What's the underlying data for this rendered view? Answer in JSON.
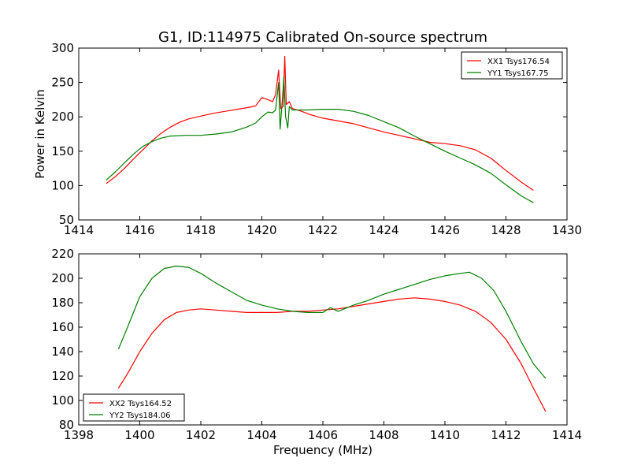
{
  "chart_data": [
    {
      "type": "line",
      "title": "G1, ID:114975 Calibrated On-source spectrum",
      "xlabel": "",
      "ylabel": "Power in Kelvin",
      "xlim": [
        1414,
        1430
      ],
      "ylim": [
        50,
        300
      ],
      "xticks": [
        1414,
        1416,
        1418,
        1420,
        1422,
        1424,
        1426,
        1428,
        1430
      ],
      "yticks": [
        50,
        100,
        150,
        200,
        250,
        300
      ],
      "legend_position": "top-right",
      "grid": false,
      "series": [
        {
          "name": "XX1 Tsys176.54",
          "color": "#ff0000",
          "points": [
            [
              1414.9,
              103
            ],
            [
              1415.2,
              113
            ],
            [
              1415.5,
              125
            ],
            [
              1415.8,
              139
            ],
            [
              1416.1,
              152
            ],
            [
              1416.4,
              165
            ],
            [
              1416.7,
              176
            ],
            [
              1417.0,
              185
            ],
            [
              1417.3,
              192
            ],
            [
              1417.6,
              197
            ],
            [
              1418.0,
              201
            ],
            [
              1418.4,
              205
            ],
            [
              1418.8,
              208
            ],
            [
              1419.2,
              211
            ],
            [
              1419.6,
              214
            ],
            [
              1419.8,
              216
            ],
            [
              1420.0,
              228
            ],
            [
              1420.2,
              225
            ],
            [
              1420.35,
              222
            ],
            [
              1420.45,
              232
            ],
            [
              1420.55,
              268
            ],
            [
              1420.62,
              212
            ],
            [
              1420.7,
              215
            ],
            [
              1420.75,
              288
            ],
            [
              1420.8,
              218
            ],
            [
              1420.9,
              222
            ],
            [
              1421.0,
              212
            ],
            [
              1421.3,
              208
            ],
            [
              1421.6,
              203
            ],
            [
              1422.0,
              198
            ],
            [
              1422.5,
              194
            ],
            [
              1423.0,
              190
            ],
            [
              1423.5,
              184
            ],
            [
              1424.0,
              178
            ],
            [
              1424.5,
              173
            ],
            [
              1425.0,
              168
            ],
            [
              1425.5,
              163
            ],
            [
              1426.0,
              161
            ],
            [
              1426.5,
              158
            ],
            [
              1427.0,
              152
            ],
            [
              1427.5,
              140
            ],
            [
              1428.0,
              122
            ],
            [
              1428.5,
              105
            ],
            [
              1428.9,
              93
            ]
          ]
        },
        {
          "name": "YY1 Tsys167.75",
          "color": "#007f00",
          "points": [
            [
              1414.9,
              108
            ],
            [
              1415.2,
              120
            ],
            [
              1415.5,
              133
            ],
            [
              1415.8,
              146
            ],
            [
              1416.1,
              157
            ],
            [
              1416.4,
              164
            ],
            [
              1416.7,
              169
            ],
            [
              1417.0,
              172
            ],
            [
              1417.5,
              173
            ],
            [
              1418.0,
              173
            ],
            [
              1418.5,
              175
            ],
            [
              1419.0,
              178
            ],
            [
              1419.5,
              185
            ],
            [
              1419.8,
              191
            ],
            [
              1420.0,
              200
            ],
            [
              1420.2,
              207
            ],
            [
              1420.35,
              206
            ],
            [
              1420.45,
              210
            ],
            [
              1420.55,
              250
            ],
            [
              1420.6,
              182
            ],
            [
              1420.68,
              230
            ],
            [
              1420.72,
              258
            ],
            [
              1420.78,
              200
            ],
            [
              1420.85,
              184
            ],
            [
              1420.9,
              215
            ],
            [
              1421.0,
              210
            ],
            [
              1421.5,
              210
            ],
            [
              1422.0,
              211
            ],
            [
              1422.5,
              211
            ],
            [
              1423.0,
              208
            ],
            [
              1423.5,
              202
            ],
            [
              1424.0,
              193
            ],
            [
              1424.5,
              184
            ],
            [
              1425.0,
              172
            ],
            [
              1425.5,
              161
            ],
            [
              1426.0,
              150
            ],
            [
              1426.5,
              140
            ],
            [
              1427.0,
              130
            ],
            [
              1427.5,
              118
            ],
            [
              1428.0,
              101
            ],
            [
              1428.5,
              85
            ],
            [
              1428.9,
              75
            ]
          ]
        }
      ]
    },
    {
      "type": "line",
      "title": "",
      "xlabel": "Frequency (MHz)",
      "ylabel": "",
      "xlim": [
        1398,
        1414
      ],
      "ylim": [
        80,
        220
      ],
      "xticks": [
        1398,
        1400,
        1402,
        1404,
        1406,
        1408,
        1410,
        1412,
        1414
      ],
      "yticks": [
        80,
        100,
        120,
        140,
        160,
        180,
        200,
        220
      ],
      "legend_position": "bottom-left",
      "grid": false,
      "series": [
        {
          "name": "XX2 Tsys164.52",
          "color": "#ff0000",
          "points": [
            [
              1399.3,
              110
            ],
            [
              1399.6,
              122
            ],
            [
              1400.0,
              140
            ],
            [
              1400.4,
              155
            ],
            [
              1400.8,
              166
            ],
            [
              1401.2,
              172
            ],
            [
              1401.6,
              174
            ],
            [
              1402.0,
              175
            ],
            [
              1402.5,
              174
            ],
            [
              1403.0,
              173
            ],
            [
              1403.5,
              172
            ],
            [
              1404.0,
              172
            ],
            [
              1404.5,
              172
            ],
            [
              1405.0,
              173
            ],
            [
              1405.5,
              173
            ],
            [
              1406.0,
              174
            ],
            [
              1406.5,
              175
            ],
            [
              1407.0,
              177
            ],
            [
              1407.5,
              179
            ],
            [
              1408.0,
              181
            ],
            [
              1408.5,
              183
            ],
            [
              1409.0,
              184
            ],
            [
              1409.5,
              183
            ],
            [
              1410.0,
              181
            ],
            [
              1410.5,
              178
            ],
            [
              1411.0,
              173
            ],
            [
              1411.5,
              164
            ],
            [
              1412.0,
              150
            ],
            [
              1412.5,
              130
            ],
            [
              1412.9,
              110
            ],
            [
              1413.3,
              91
            ]
          ]
        },
        {
          "name": "YY2 Tsys184.06",
          "color": "#007f00",
          "points": [
            [
              1399.3,
              142
            ],
            [
              1399.6,
              160
            ],
            [
              1400.0,
              185
            ],
            [
              1400.4,
              200
            ],
            [
              1400.8,
              208
            ],
            [
              1401.2,
              210
            ],
            [
              1401.6,
              209
            ],
            [
              1402.0,
              204
            ],
            [
              1402.5,
              196
            ],
            [
              1403.0,
              189
            ],
            [
              1403.5,
              182
            ],
            [
              1404.0,
              178
            ],
            [
              1404.5,
              175
            ],
            [
              1405.0,
              173
            ],
            [
              1405.5,
              172
            ],
            [
              1406.0,
              172
            ],
            [
              1406.25,
              176
            ],
            [
              1406.5,
              173
            ],
            [
              1407.0,
              178
            ],
            [
              1407.5,
              182
            ],
            [
              1408.0,
              187
            ],
            [
              1408.5,
              191
            ],
            [
              1409.0,
              195
            ],
            [
              1409.5,
              199
            ],
            [
              1410.0,
              202
            ],
            [
              1410.5,
              204
            ],
            [
              1410.8,
              205
            ],
            [
              1411.2,
              200
            ],
            [
              1411.6,
              190
            ],
            [
              1412.0,
              173
            ],
            [
              1412.5,
              148
            ],
            [
              1412.9,
              130
            ],
            [
              1413.3,
              118
            ]
          ]
        }
      ]
    }
  ]
}
